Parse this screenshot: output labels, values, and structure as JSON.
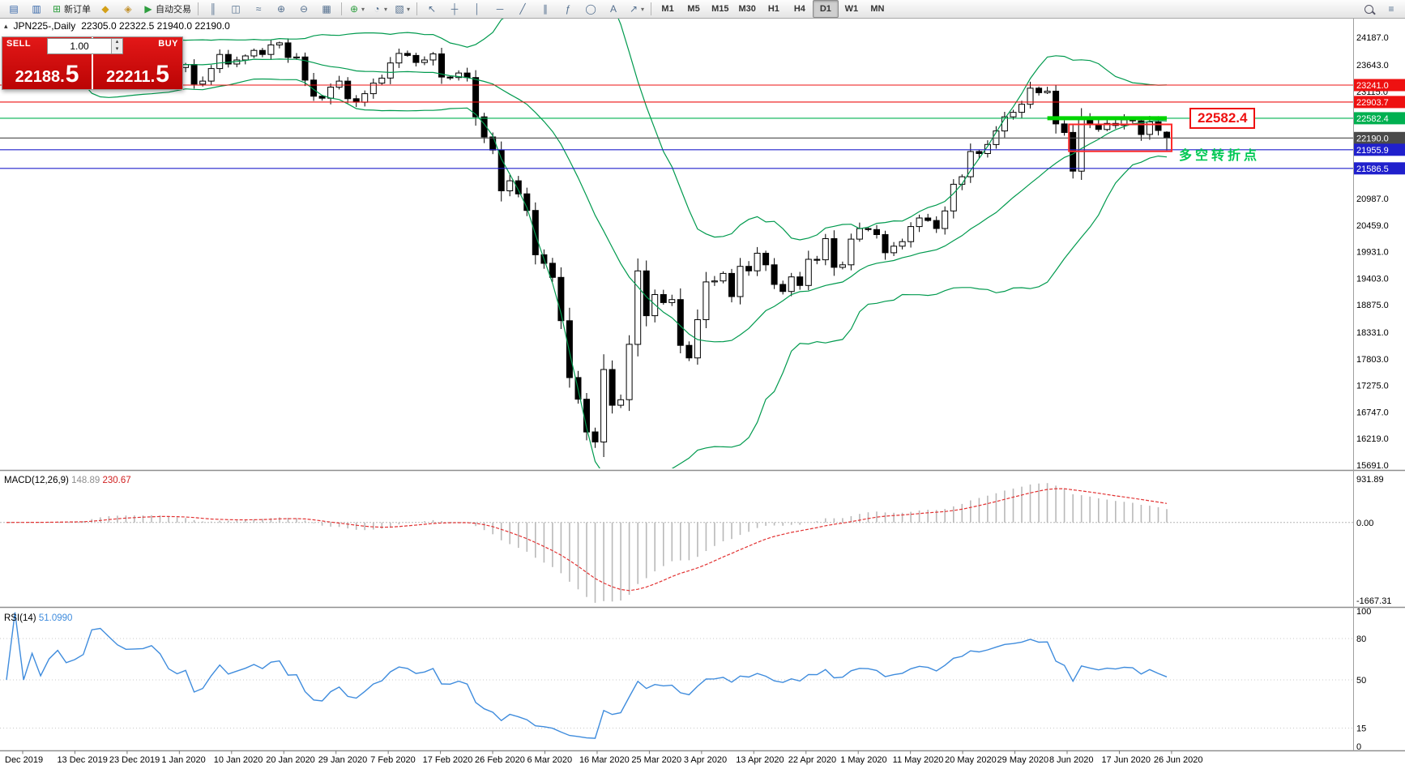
{
  "chart_header": {
    "symbol_period": "JPN225-,Daily",
    "ohlc": "22305.0 22322.5 21940.0 22190.0"
  },
  "one_click": {
    "sell_label": "SELL",
    "buy_label": "BUY",
    "lot": "1.00",
    "sell_price_main": "22188.",
    "sell_price_pip": "5",
    "buy_price_main": "22211.",
    "buy_price_pip": "5"
  },
  "annotations": {
    "price_box": "22582.4",
    "note": "多空转折点"
  },
  "toolbar": {
    "groups": [
      {
        "items": [
          {
            "name": "market-watch-button",
            "icon": "market-watch-icon",
            "glyph": "▤",
            "color": "#3565a8"
          },
          {
            "name": "data-window-button",
            "icon": "data-window-icon",
            "glyph": "▥",
            "color": "#3565a8"
          },
          {
            "name": "new-order-button",
            "icon": "new-order-icon",
            "glyph": "⊞",
            "color": "#2e9e3f",
            "label": "新订单"
          },
          {
            "name": "mql5-community-button",
            "icon": "community-icon",
            "glyph": "◆",
            "color": "#d4a017"
          },
          {
            "name": "deposit-button",
            "icon": "wallet-icon",
            "glyph": "◈",
            "color": "#c2912e"
          },
          {
            "name": "auto-trading-button",
            "icon": "autotrading-play-icon",
            "glyph": "▶",
            "color": "#2e9e3f",
            "label": "自动交易"
          }
        ]
      },
      {
        "items": [
          {
            "name": "bars-mode-button",
            "icon": "bar-chart-icon",
            "glyph": "║"
          },
          {
            "name": "candles-mode-button",
            "icon": "candlestick-icon",
            "glyph": "◫"
          },
          {
            "name": "line-mode-button",
            "icon": "line-chart-icon",
            "glyph": "≈"
          },
          {
            "name": "zoom-in-button",
            "icon": "zoom-in-icon",
            "glyph": "⊕"
          },
          {
            "name": "zoom-out-button",
            "icon": "zoom-out-icon",
            "glyph": "⊖"
          },
          {
            "name": "tile-windows-button",
            "icon": "tile-windows-icon",
            "glyph": "▦"
          }
        ]
      },
      {
        "items": [
          {
            "name": "indicators-button",
            "icon": "indicators-icon",
            "glyph": "⊕",
            "color": "#2e9e3f",
            "dropdown": true
          },
          {
            "name": "periods-button",
            "icon": "clock-icon",
            "glyph": "◔",
            "dropdown": true
          },
          {
            "name": "templates-button",
            "icon": "template-icon",
            "glyph": "▧",
            "dropdown": true
          }
        ]
      },
      {
        "items": [
          {
            "name": "cursor-button",
            "icon": "cursor-icon",
            "glyph": "↖"
          },
          {
            "name": "crosshair-button",
            "icon": "crosshair-icon",
            "glyph": "┼"
          },
          {
            "name": "vertical-line-button",
            "icon": "vertical-line-icon",
            "glyph": "│"
          },
          {
            "name": "horizontal-line-button",
            "icon": "horizontal-line-icon",
            "glyph": "─"
          },
          {
            "name": "trendline-button",
            "icon": "trendline-icon",
            "glyph": "╱"
          },
          {
            "name": "channel-button",
            "icon": "channel-icon",
            "glyph": "∥"
          },
          {
            "name": "fibonacci-button",
            "icon": "fibonacci-icon",
            "glyph": "ƒ"
          },
          {
            "name": "shapes-button",
            "icon": "ellipse-icon",
            "glyph": "◯"
          },
          {
            "name": "text-button",
            "icon": "text-icon",
            "glyph": "A"
          },
          {
            "name": "arrows-button",
            "icon": "arrow-icon",
            "glyph": "↗",
            "dropdown": true
          }
        ]
      }
    ],
    "timeframes": {
      "items": [
        "M1",
        "M5",
        "M15",
        "M30",
        "H1",
        "H4",
        "D1",
        "W1",
        "MN"
      ],
      "active": "D1"
    },
    "right_items": [
      {
        "name": "search-button",
        "icon": "search-icon",
        "css": "icon-search"
      },
      {
        "name": "menu-button",
        "icon": "menu-icon",
        "glyph": "≡"
      }
    ]
  },
  "chart_data": {
    "type": "candlestick",
    "title": "JPN225- Daily",
    "symbol": "JPN225-",
    "period": "Daily",
    "last_ohlc": {
      "open": 22305.0,
      "high": 22322.5,
      "low": 21940.0,
      "close": 22190.0
    },
    "price_range": [
      15626,
      24577
    ],
    "closes": [
      23310,
      23350,
      23310,
      23360,
      23320,
      23380,
      23430,
      23390,
      23410,
      23450,
      23950,
      24020,
      23950,
      23870,
      23820,
      23830,
      23840,
      23920,
      23840,
      23660,
      23590,
      23650,
      23260,
      23320,
      23570,
      23850,
      23660,
      23740,
      23820,
      23930,
      23850,
      24040,
      24080,
      23790,
      23800,
      23340,
      23020,
      22980,
      23200,
      23320,
      22970,
      22900,
      23070,
      23280,
      23380,
      23680,
      23870,
      23830,
      23690,
      23740,
      23860,
      23400,
      23390,
      23480,
      23390,
      22610,
      22210,
      21950,
      21140,
      21340,
      21080,
      20750,
      19870,
      19700,
      19420,
      18560,
      17430,
      17000,
      16350,
      16150,
      17590,
      16880,
      16990,
      18090,
      19550,
      18660,
      19080,
      18920,
      18980,
      18070,
      17820,
      18580,
      19330,
      19350,
      19500,
      19040,
      19640,
      19550,
      19900,
      19670,
      19280,
      19140,
      19430,
      19260,
      19780,
      19770,
      20190,
      19620,
      19670,
      20180,
      20390,
      20370,
      20270,
      19910,
      20040,
      20130,
      20430,
      20600,
      20550,
      20390,
      20740,
      21270,
      21420,
      21920,
      21880,
      22060,
      22330,
      22610,
      22700,
      22860,
      23180,
      23090,
      23120,
      22470,
      22300,
      21530,
      22580,
      22460,
      22360,
      22480,
      22440,
      22550,
      22530,
      22260,
      22510,
      22340,
      22190
    ],
    "x_labels": [
      "Dec 2019",
      "13 Dec 2019",
      "23 Dec 2019",
      "1 Jan 2020",
      "10 Jan 2020",
      "20 Jan 2020",
      "29 Jan 2020",
      "7 Feb 2020",
      "17 Feb 2020",
      "26 Feb 2020",
      "6 Mar 2020",
      "16 Mar 2020",
      "25 Mar 2020",
      "3 Apr 2020",
      "13 Apr 2020",
      "22 Apr 2020",
      "1 May 2020",
      "11 May 2020",
      "20 May 2020",
      "29 May 2020",
      "8 Jun 2020",
      "17 Jun 2020",
      "26 Jun 2020"
    ],
    "y_axis_labels": [
      24187.0,
      23643.0,
      23115.0,
      20987.0,
      20459.0,
      19931.0,
      19403.0,
      18875.0,
      18331.0,
      17803.0,
      17275.0,
      16747.0,
      16219.0,
      15691.0
    ],
    "levels": [
      {
        "value": 23241.0,
        "color": "#ee1111"
      },
      {
        "value": 22903.7,
        "color": "#ee1111"
      },
      {
        "value": 22582.4,
        "color": "#00b050"
      },
      {
        "value": 22190.0,
        "color": "#4a4a4a",
        "current": true
      },
      {
        "value": 21955.9,
        "color": "#2020cc"
      },
      {
        "value": 21586.5,
        "color": "#2020cc"
      }
    ],
    "indicators": {
      "bollinger": {
        "period": 20,
        "deviation": 2,
        "color": "#009a4e"
      }
    },
    "highlight": {
      "value": 22582.4,
      "bar_from": 122,
      "color": "#00d500"
    },
    "rectangle": {
      "price_top": 22460,
      "price_bottom": 21925,
      "bar_from": 125,
      "bar_to": 136,
      "color": "#ff2a2a"
    }
  },
  "macd": {
    "label": "MACD(12,26,9)",
    "main_value": "148.89",
    "signal_value": "230.67",
    "axis_labels": [
      "931.89",
      "0.00",
      "-1667.31"
    ],
    "scale_max": 1050,
    "scale_min": -1750
  },
  "rsi": {
    "label": "RSI(14)",
    "value": "51.0990",
    "axis_labels": [
      "100",
      "80",
      "50",
      "15",
      "0"
    ],
    "level_lines": [
      80,
      50,
      15
    ]
  }
}
